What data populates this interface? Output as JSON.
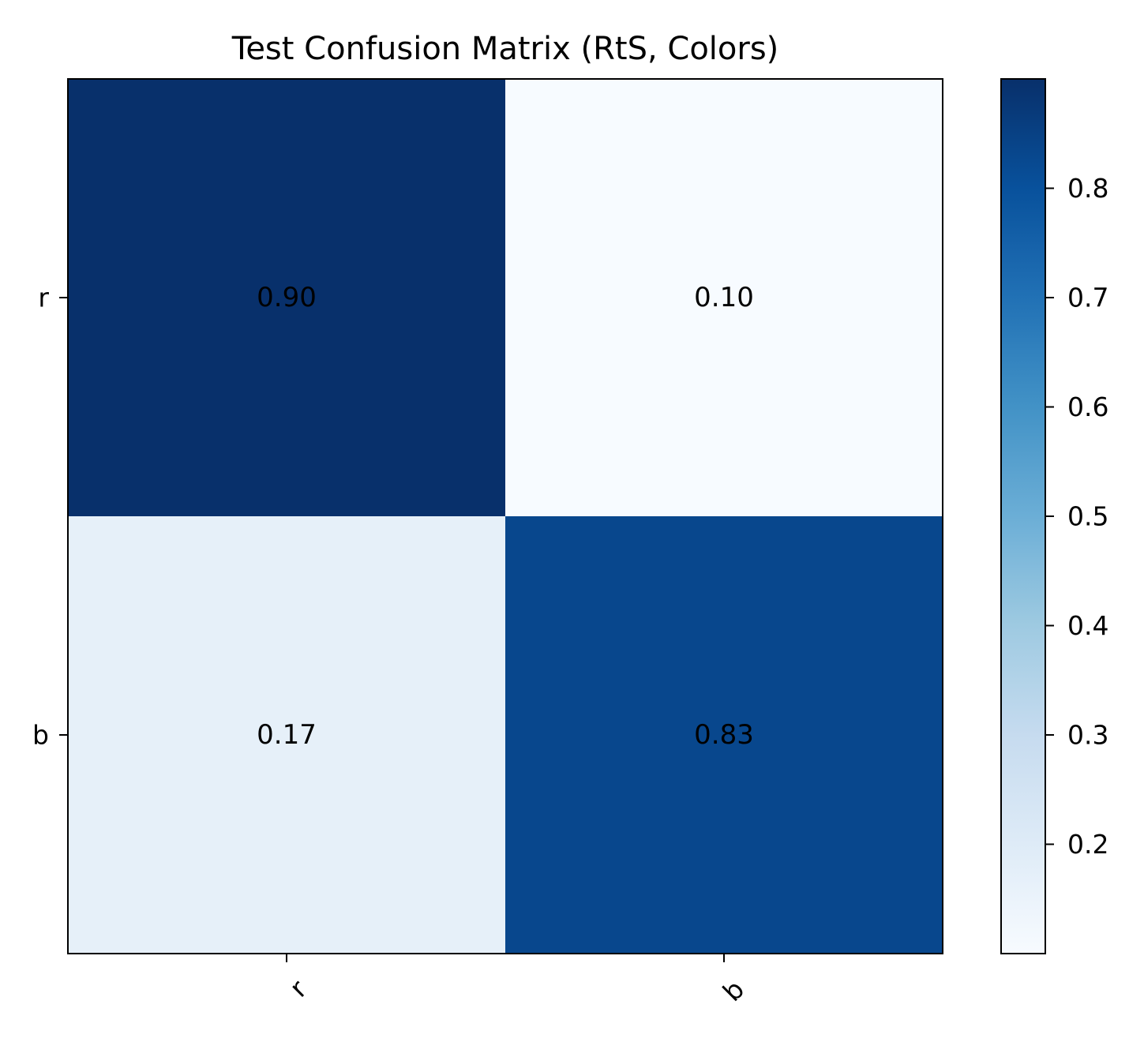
{
  "chart_data": {
    "type": "heatmap",
    "title": "Test Confusion Matrix (RtS, Colors)",
    "xlabel": "",
    "ylabel": "",
    "x_labels": [
      "r",
      "b"
    ],
    "y_labels": [
      "r",
      "b"
    ],
    "values": [
      [
        0.9,
        0.1
      ],
      [
        0.17,
        0.83
      ]
    ],
    "cell_labels": [
      [
        "0.90",
        "0.10"
      ],
      [
        "0.17",
        "0.83"
      ]
    ],
    "colormap": "Blues",
    "colorbar": {
      "range": [
        0.1,
        0.9
      ],
      "ticks": [
        0.2,
        0.3,
        0.4,
        0.5,
        0.6,
        0.7,
        0.8
      ],
      "tick_labels": [
        "0.2",
        "0.3",
        "0.4",
        "0.5",
        "0.6",
        "0.7",
        "0.8"
      ]
    },
    "grid": false
  }
}
